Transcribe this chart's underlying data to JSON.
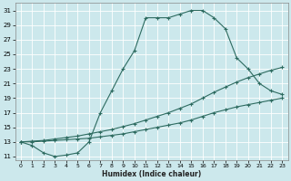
{
  "xlabel": "Humidex (Indice chaleur)",
  "xlim": [
    -0.5,
    23.5
  ],
  "ylim": [
    10.5,
    32
  ],
  "yticks": [
    11,
    13,
    15,
    17,
    19,
    21,
    23,
    25,
    27,
    29,
    31
  ],
  "xticks": [
    0,
    1,
    2,
    3,
    4,
    5,
    6,
    7,
    8,
    9,
    10,
    11,
    12,
    13,
    14,
    15,
    16,
    17,
    18,
    19,
    20,
    21,
    22,
    23
  ],
  "bg_color": "#cce8ec",
  "line_color": "#2d6b60",
  "grid_color": "#ffffff",
  "line1_x": [
    0,
    1,
    2,
    3,
    4,
    5,
    6,
    7,
    8,
    9,
    10,
    11,
    12,
    13,
    14,
    15,
    16,
    17,
    18,
    19,
    20,
    21,
    22,
    23
  ],
  "line1_y": [
    13,
    12.5,
    11.5,
    11,
    11.2,
    11.5,
    13,
    17,
    20,
    23,
    25.5,
    30,
    30,
    30,
    30.5,
    31,
    31,
    30,
    28.5,
    24.5,
    23,
    21,
    20,
    19.5
  ],
  "line2_x": [
    0,
    1,
    2,
    3,
    4,
    5,
    6,
    7,
    8,
    9,
    10,
    11,
    12,
    13,
    14,
    15,
    16,
    17,
    18,
    19,
    20,
    21,
    22,
    23
  ],
  "line2_y": [
    13,
    13.1,
    13.2,
    13.4,
    13.6,
    13.8,
    14.1,
    14.4,
    14.7,
    15.1,
    15.5,
    16.0,
    16.5,
    17.0,
    17.6,
    18.2,
    19.0,
    19.8,
    20.5,
    21.2,
    21.8,
    22.3,
    22.8,
    23.2
  ],
  "line3_x": [
    0,
    1,
    2,
    3,
    4,
    5,
    6,
    7,
    8,
    9,
    10,
    11,
    12,
    13,
    14,
    15,
    16,
    17,
    18,
    19,
    20,
    21,
    22,
    23
  ],
  "line3_y": [
    13,
    13.0,
    13.1,
    13.2,
    13.3,
    13.4,
    13.5,
    13.7,
    13.9,
    14.1,
    14.4,
    14.7,
    15.0,
    15.3,
    15.6,
    16.0,
    16.5,
    17.0,
    17.4,
    17.8,
    18.1,
    18.4,
    18.7,
    19.0
  ]
}
